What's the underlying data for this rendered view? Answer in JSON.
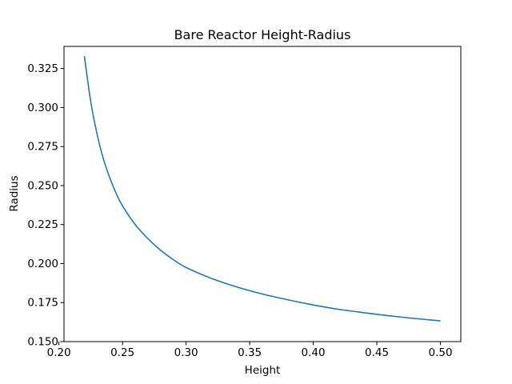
{
  "chart_data": {
    "type": "line",
    "title": "Bare Reactor Height-Radius",
    "xlabel": "Height",
    "ylabel": "Radius",
    "xlim": [
      0.204,
      0.516
    ],
    "ylim": [
      0.15,
      0.3392
    ],
    "grid": false,
    "xticks": [
      0.2,
      0.25,
      0.3,
      0.35,
      0.4,
      0.45,
      0.5
    ],
    "xtick_labels": [
      "0.20",
      "0.25",
      "0.30",
      "0.35",
      "0.40",
      "0.45",
      "0.50"
    ],
    "yticks": [
      0.15,
      0.175,
      0.2,
      0.225,
      0.25,
      0.275,
      0.3,
      0.325
    ],
    "ytick_labels": [
      "0.150",
      "0.175",
      "0.200",
      "0.225",
      "0.250",
      "0.275",
      "0.300",
      "0.325"
    ],
    "series": [
      {
        "color": "#1f77b4",
        "x": [
          0.22,
          0.225,
          0.23,
          0.235,
          0.24,
          0.245,
          0.25,
          0.26,
          0.27,
          0.28,
          0.29,
          0.3,
          0.32,
          0.34,
          0.36,
          0.38,
          0.4,
          0.42,
          0.44,
          0.46,
          0.48,
          0.5
        ],
        "y": [
          0.333,
          0.304,
          0.283,
          0.267,
          0.255,
          0.245,
          0.237,
          0.225,
          0.216,
          0.2085,
          0.2025,
          0.1975,
          0.1905,
          0.185,
          0.1805,
          0.1768,
          0.1735,
          0.1707,
          0.1685,
          0.1665,
          0.1648,
          0.1633
        ]
      }
    ]
  }
}
